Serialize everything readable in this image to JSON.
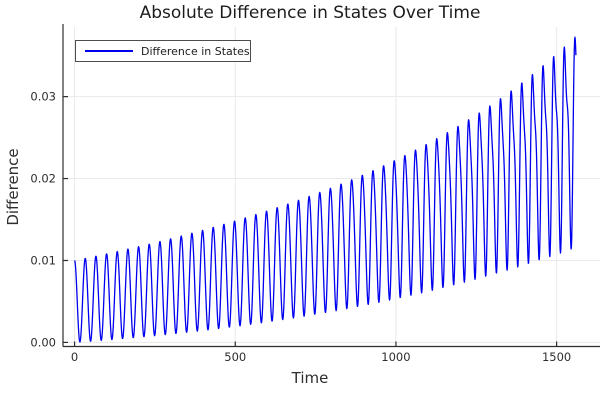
{
  "chart_data": {
    "type": "line",
    "title": "Absolute Difference in States Over Time",
    "xlabel": "Time",
    "ylabel": "Difference",
    "grid": true,
    "xlim": [
      -36,
      1635
    ],
    "ylim": [
      -0.0005,
      0.0385
    ],
    "xticks": {
      "values": [
        0,
        500,
        1000,
        1500
      ],
      "labels": [
        "0",
        "500",
        "1000",
        "1500"
      ]
    },
    "yticks": {
      "values": [
        0,
        0.01,
        0.02,
        0.03
      ],
      "labels": [
        "0.00",
        "0.01",
        "0.02",
        "0.03"
      ]
    },
    "colors": {
      "line": "#0000f0",
      "axis": "#2e2e2e",
      "grid": "#e9e9e9",
      "text": "#2e2e2e",
      "background": "#ffffff"
    },
    "legend": {
      "position": "top-left",
      "entries": [
        {
          "label": "Difference in States",
          "color": "#0000f0"
        }
      ]
    },
    "series": [
      {
        "name": "Difference in States",
        "color": "#0000f0",
        "description": "Absolute difference between two states: oscillation of period ~33 time units whose envelope grows over t=0..1560; mean rises ~0.005 to ~0.026, amplitude ~0.005 to ~0.011; early troughs touch 0, late troughs ~0.013, peaks reach ~0.037; waveform develops notched double peaks late in time.",
        "generator": {
          "t_start": 0,
          "t_end": 1560,
          "dt": 1,
          "period": 33.2,
          "mean_start": 0.005,
          "mean_growth_rate": 0.0010573,
          "amp_start": 0.005,
          "amp_growth_rate": 0.000505,
          "harmonic_ratio_max": 0.38,
          "harmonic_phase": 2.2,
          "harmonic_power": 2.4,
          "absolute_value": true
        },
        "envelope_samples": {
          "t": [
            0,
            450,
            780,
            1013,
            1230,
            1560
          ],
          "peak": [
            0.01,
            0.0155,
            0.019,
            0.0255,
            0.0286,
            0.037
          ],
          "trough": [
            0.0,
            0.001,
            0.0035,
            0.006,
            0.01,
            0.013
          ]
        }
      }
    ]
  }
}
